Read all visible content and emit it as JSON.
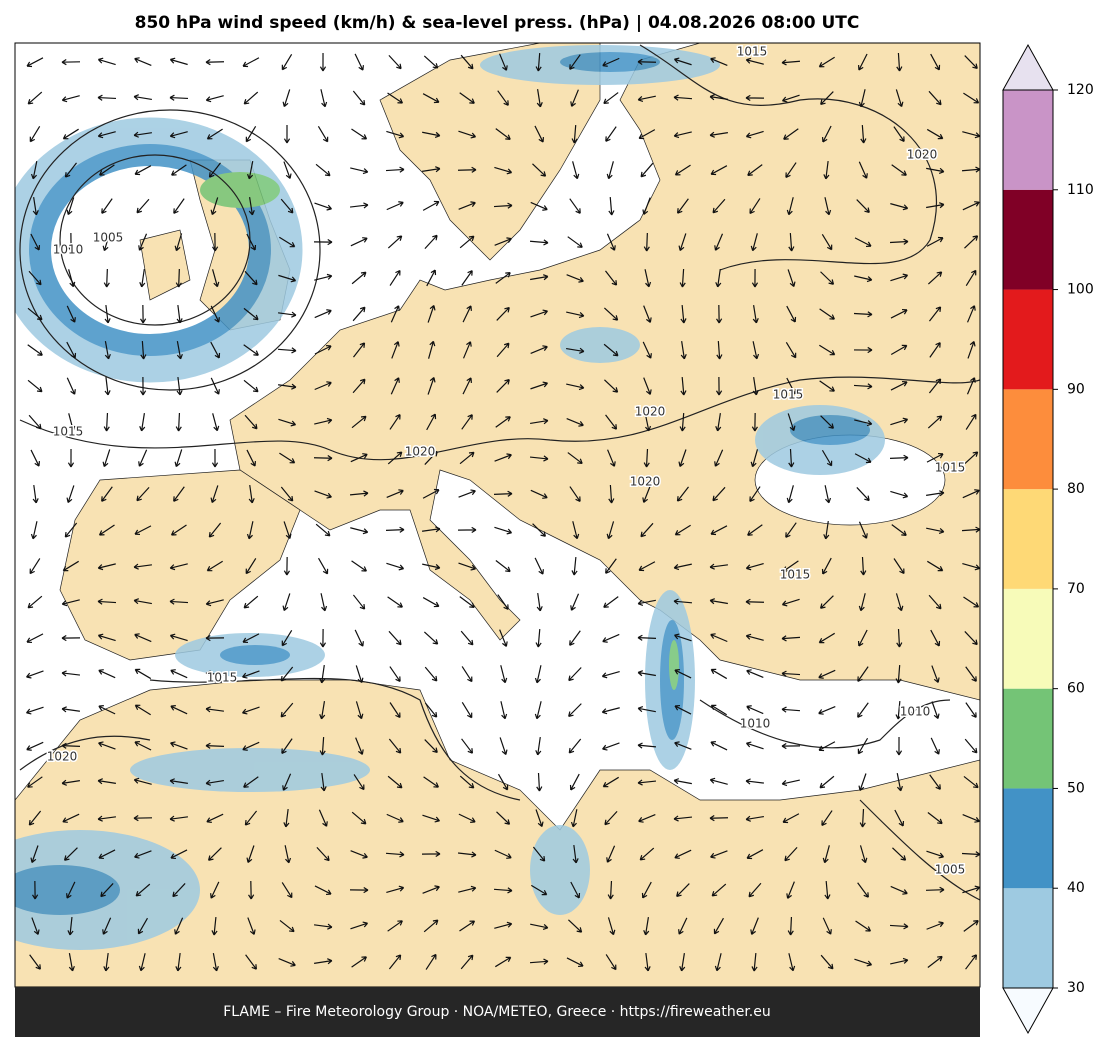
{
  "title": "850 hPa wind speed (km/h) & sea-level press. (hPa)  |  04.08.2026 08:00 UTC",
  "colorbar": {
    "ticks": [
      30,
      40,
      50,
      60,
      70,
      80,
      90,
      100,
      110,
      120
    ],
    "colors": [
      "#9ecae1",
      "#4292c6",
      "#74c476",
      "#f7fbb9",
      "#fed976",
      "#fd8d3c",
      "#e31a1c",
      "#800026",
      "#c994c7"
    ],
    "under_color": "#f7fbff",
    "over_color": "#e7e1ef"
  },
  "contour_labels": [
    "1015",
    "1020",
    "1010",
    "1005",
    "1015",
    "1020",
    "1020",
    "1015",
    "1020",
    "1015",
    "1015",
    "1015",
    "1010",
    "1010",
    "1020",
    "1005"
  ],
  "footer": "FLAME – Fire Meteorology Group · NOA/METEO, Greece · https://fireweather.eu"
}
